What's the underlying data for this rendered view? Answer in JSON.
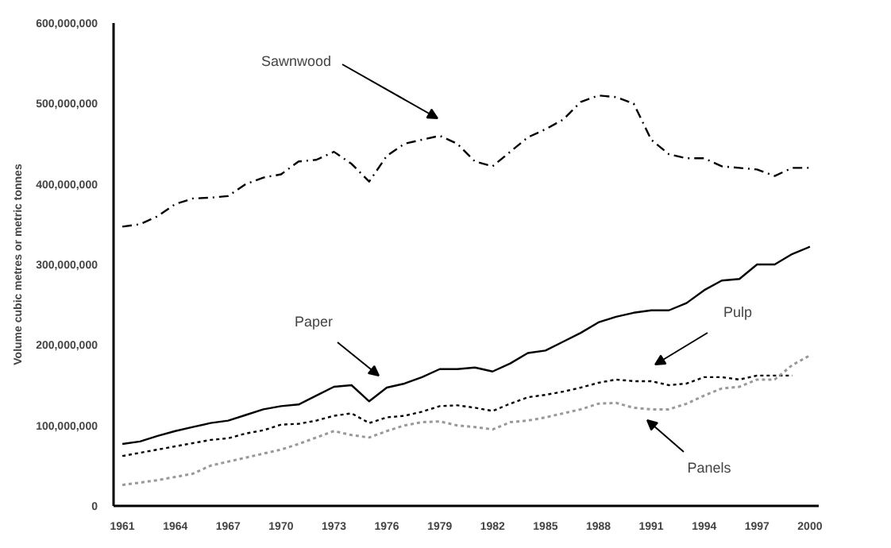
{
  "chart_data": {
    "type": "line",
    "ylabel": "Volume cubic metres or metric tonnes",
    "x": [
      1961,
      1962,
      1963,
      1964,
      1965,
      1966,
      1967,
      1968,
      1969,
      1970,
      1971,
      1972,
      1973,
      1974,
      1975,
      1976,
      1977,
      1978,
      1979,
      1980,
      1981,
      1982,
      1983,
      1984,
      1985,
      1986,
      1987,
      1988,
      1989,
      1990,
      1991,
      1992,
      1993,
      1994,
      1995,
      1996,
      1997,
      1998,
      1999,
      2000
    ],
    "series": [
      {
        "color": "#000000",
        "line_style": "dashed",
        "values": [
          347000000,
          350000000,
          360000000,
          375000000,
          382000000,
          383000000,
          385000000,
          400000000,
          408000000,
          412000000,
          428000000,
          430000000,
          440000000,
          425000000,
          403000000,
          435000000,
          450000000,
          455000000,
          460000000,
          450000000,
          428000000,
          422000000,
          440000000,
          458000000,
          468000000,
          480000000,
          502000000,
          510000000,
          508000000,
          500000000,
          455000000,
          437000000,
          432000000,
          432000000,
          422000000,
          420000000,
          418000000,
          410000000,
          420000000,
          420000000
        ]
      },
      {
        "color": "#000000",
        "line_style": "solid",
        "values": [
          77000000,
          80000000,
          87000000,
          93000000,
          98000000,
          103000000,
          106000000,
          113000000,
          120000000,
          124000000,
          126000000,
          137000000,
          148000000,
          150000000,
          130000000,
          147000000,
          152000000,
          160000000,
          170000000,
          170000000,
          172000000,
          167000000,
          177000000,
          190000000,
          193000000,
          204000000,
          215000000,
          228000000,
          235000000,
          240000000,
          243000000,
          243000000,
          252000000,
          268000000,
          280000000,
          282000000,
          300000000,
          300000000,
          313000000,
          322000000
        ]
      },
      {
        "color": "#000000",
        "line_style": "dotted",
        "values": [
          62000000,
          66000000,
          70000000,
          74000000,
          78000000,
          82000000,
          84000000,
          90000000,
          94000000,
          101000000,
          102000000,
          106000000,
          112000000,
          115000000,
          103000000,
          110000000,
          112000000,
          117000000,
          124000000,
          125000000,
          122000000,
          118000000,
          127000000,
          135000000,
          138000000,
          142000000,
          147000000,
          153000000,
          157000000,
          155000000,
          155000000,
          150000000,
          152000000,
          160000000,
          160000000,
          157000000,
          162000000,
          162000000,
          162000000,
          null
        ]
      },
      {
        "color": "#999999",
        "line_style": "dotted",
        "values": [
          26000000,
          29000000,
          32000000,
          36000000,
          40000000,
          50000000,
          55000000,
          60000000,
          65000000,
          70000000,
          77000000,
          85000000,
          93000000,
          88000000,
          85000000,
          93000000,
          100000000,
          104000000,
          105000000,
          100000000,
          98000000,
          95000000,
          104000000,
          106000000,
          110000000,
          115000000,
          120000000,
          127000000,
          128000000,
          122000000,
          120000000,
          120000000,
          127000000,
          137000000,
          146000000,
          148000000,
          157000000,
          157000000,
          175000000,
          187000000
        ]
      }
    ],
    "annotations": [
      "Sawnwood",
      "Paper",
      "Pulp",
      "Panels"
    ],
    "xlim": [
      1960.5,
      2000.5
    ],
    "ylim": [
      0,
      600000000
    ],
    "xticks": [
      1961,
      1964,
      1967,
      1970,
      1973,
      1976,
      1979,
      1982,
      1985,
      1988,
      1991,
      1994,
      1997,
      2000
    ],
    "yticks": [
      0,
      {
        "value": 100000000,
        "label": "100,000,000"
      },
      {
        "value": 200000000,
        "label": "200,000,000"
      },
      {
        "value": 300000000,
        "label": "300,000,000"
      },
      {
        "value": 400000000,
        "label": "400,000,000"
      },
      {
        "value": 500000000,
        "label": "500,000,000"
      },
      {
        "value": 600000000,
        "label": "600,000,000"
      }
    ],
    "grid": false
  }
}
